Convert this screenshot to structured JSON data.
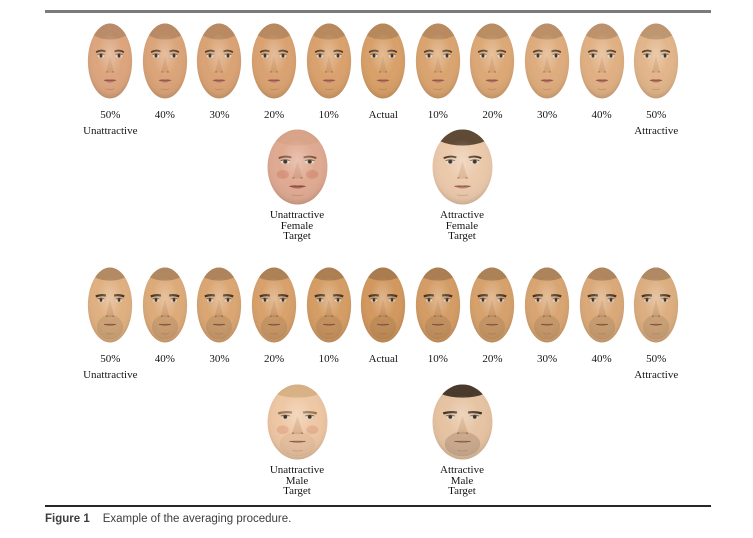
{
  "figure": {
    "caption_label": "Figure 1",
    "caption_text": "Example of the averaging procedure."
  },
  "colors": {
    "top_rule": "#7b7b7b",
    "bottom_rule": "#262626",
    "caption_text": "#3e3e3e",
    "label_text": "#151515",
    "background": "#ffffff"
  },
  "face_colors": {
    "female_average": {
      "skin": "#d8a069",
      "hair": "#7b5c3e",
      "hair_opacity": 0.35,
      "brow": "#45311f",
      "lip": "#b97768"
    },
    "male_average": {
      "skin": "#d2985e",
      "hair": "#6d5238",
      "hair_opacity": 0.4,
      "brow": "#38291b",
      "lip": "#a8745c",
      "stubble_opacity": 0.13
    },
    "unattractive_female": {
      "skin": "#e0aa92",
      "hair": "#b98a68",
      "hair_opacity": 0.2,
      "brow": "#6a4a34",
      "lip": "#b06a5e",
      "blush": "#c97a62",
      "blush_opacity": 0.45
    },
    "attractive_female": {
      "skin": "#ebc9ab",
      "hair": "#45321f",
      "hair_opacity": 0.85,
      "brow": "#3a2a1a",
      "lip": "#c18678"
    },
    "unattractive_male": {
      "skin": "#eec7a4",
      "hair": "#c99e6d",
      "hair_opacity": 0.55,
      "brow": "#8a6a48",
      "lip": "#b77a66",
      "blush": "#d08a6e",
      "blush_opacity": 0.35,
      "stubble_opacity": 0.06
    },
    "attractive_male": {
      "skin": "#e6c3a2",
      "hair": "#362a1e",
      "hair_opacity": 0.9,
      "brow": "#2f241a",
      "lip": "#b08068",
      "stubble_opacity": 0.18
    }
  },
  "rows": [
    {
      "id": "female",
      "face_labels": [
        "50%",
        "40%",
        "30%",
        "20%",
        "10%",
        "Actual",
        "10%",
        "20%",
        "30%",
        "40%",
        "50%"
      ],
      "left_sublabel": "Unattractive",
      "right_sublabel": "Attractive",
      "targets": [
        {
          "id": "unattractive-female",
          "palette": "unattractive_female",
          "label_lines": [
            "Unattractive",
            "Female",
            "Target"
          ]
        },
        {
          "id": "attractive-female",
          "palette": "attractive_female",
          "label_lines": [
            "Attractive",
            "Female",
            "Target"
          ]
        }
      ]
    },
    {
      "id": "male",
      "face_labels": [
        "50%",
        "40%",
        "30%",
        "20%",
        "10%",
        "Actual",
        "10%",
        "20%",
        "30%",
        "40%",
        "50%"
      ],
      "left_sublabel": "Unattractive",
      "right_sublabel": "Attractive",
      "targets": [
        {
          "id": "unattractive-male",
          "palette": "unattractive_male",
          "label_lines": [
            "Unattractive",
            "Male",
            "Target"
          ]
        },
        {
          "id": "attractive-male",
          "palette": "attractive_male",
          "label_lines": [
            "Attractive",
            "Male",
            "Target"
          ]
        }
      ]
    }
  ]
}
